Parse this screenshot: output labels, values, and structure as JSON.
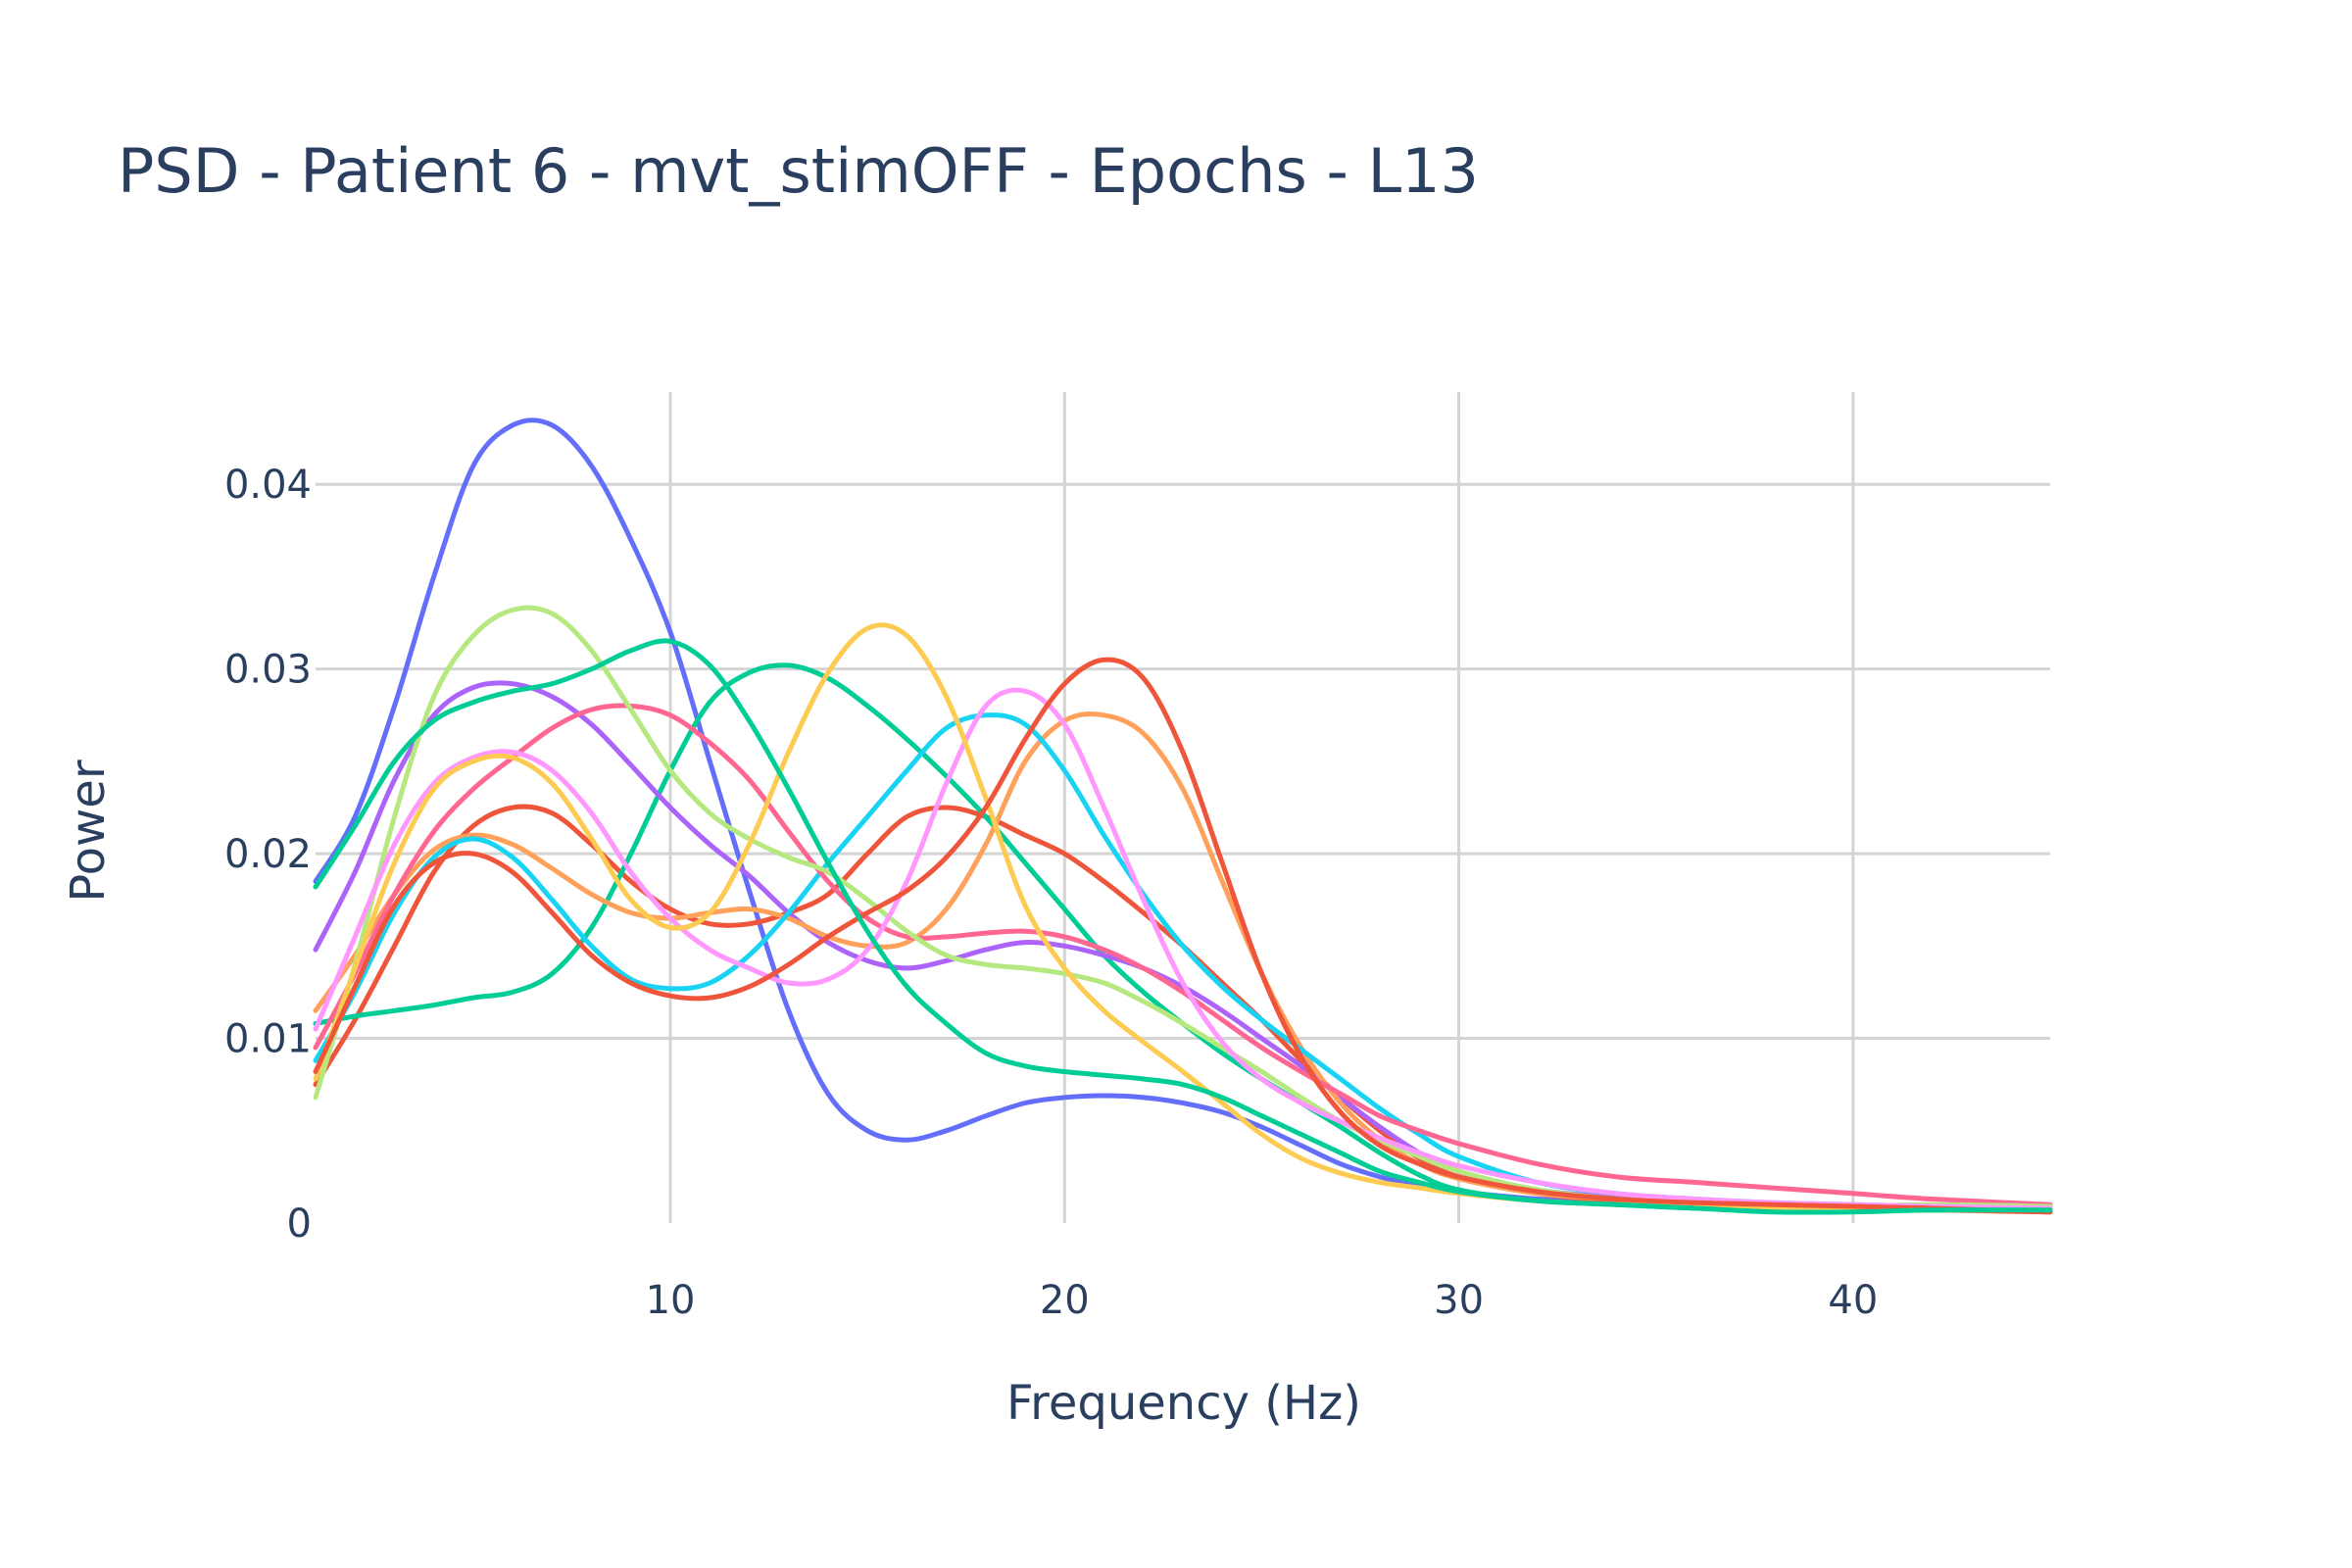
{
  "chart_data": {
    "type": "line",
    "title": "PSD - Patient 6 - mvt_stimOFF - Epochs - L13",
    "xlabel": "Frequency (Hz)",
    "ylabel": "Power",
    "xlim": [
      1,
      45
    ],
    "ylim": [
      0,
      0.045
    ],
    "x_ticks": [
      10,
      20,
      30,
      40
    ],
    "x_tick_labels": [
      "10",
      "20",
      "30",
      "40"
    ],
    "y_ticks": [
      0,
      0.01,
      0.02,
      0.03,
      0.04
    ],
    "y_tick_labels": [
      "0",
      "0.01",
      "0.02",
      "0.03",
      "0.04"
    ],
    "grid": true,
    "legend": "none",
    "x": [
      1,
      2,
      3,
      4,
      5,
      6,
      7,
      8,
      9,
      10,
      11,
      12,
      13,
      14,
      15,
      16,
      17,
      18,
      19,
      20,
      21,
      22,
      23,
      24,
      25,
      26,
      27,
      28,
      29,
      30,
      32,
      34,
      36,
      38,
      40,
      42,
      45
    ],
    "series": [
      {
        "color": "#636efa",
        "values": [
          0.0185,
          0.022,
          0.028,
          0.035,
          0.041,
          0.0432,
          0.0432,
          0.041,
          0.037,
          0.032,
          0.025,
          0.018,
          0.0115,
          0.007,
          0.005,
          0.0045,
          0.005,
          0.0058,
          0.0065,
          0.0068,
          0.0069,
          0.0068,
          0.0065,
          0.006,
          0.0052,
          0.0042,
          0.0032,
          0.0025,
          0.002,
          0.0017,
          0.0013,
          0.0011,
          0.001,
          0.001,
          0.0009,
          0.0008,
          0.0007
        ]
      },
      {
        "color": "#ef553b",
        "values": [
          0.0075,
          0.011,
          0.015,
          0.019,
          0.0215,
          0.0225,
          0.0222,
          0.0205,
          0.0185,
          0.017,
          0.0162,
          0.0162,
          0.0168,
          0.0178,
          0.02,
          0.022,
          0.0225,
          0.022,
          0.021,
          0.02,
          0.0185,
          0.0168,
          0.015,
          0.013,
          0.011,
          0.0088,
          0.0068,
          0.005,
          0.0035,
          0.0025,
          0.0016,
          0.0012,
          0.001,
          0.0009,
          0.0008,
          0.0007,
          0.0006
        ]
      },
      {
        "color": "#00cc96",
        "values": [
          0.0108,
          0.0112,
          0.0115,
          0.0118,
          0.0122,
          0.0125,
          0.0135,
          0.016,
          0.02,
          0.0245,
          0.0282,
          0.0298,
          0.0302,
          0.0295,
          0.028,
          0.0262,
          0.0242,
          0.022,
          0.0195,
          0.017,
          0.0145,
          0.0125,
          0.0108,
          0.0092,
          0.0078,
          0.0065,
          0.0052,
          0.0038,
          0.0026,
          0.0018,
          0.0012,
          0.001,
          0.0008,
          0.0007,
          0.0007,
          0.0007,
          0.0007
        ]
      },
      {
        "color": "#ab63fa",
        "values": [
          0.0148,
          0.019,
          0.024,
          0.0275,
          0.029,
          0.0292,
          0.0285,
          0.027,
          0.0248,
          0.0225,
          0.0205,
          0.0188,
          0.0168,
          0.0152,
          0.0142,
          0.0138,
          0.0142,
          0.0148,
          0.0152,
          0.015,
          0.0145,
          0.0138,
          0.0128,
          0.0115,
          0.01,
          0.0085,
          0.0068,
          0.0052,
          0.0038,
          0.0028,
          0.0018,
          0.0014,
          0.0012,
          0.001,
          0.0009,
          0.0008,
          0.0008
        ]
      },
      {
        "color": "#ffa15a",
        "values": [
          0.0115,
          0.0145,
          0.0178,
          0.0202,
          0.021,
          0.0205,
          0.0192,
          0.0178,
          0.0168,
          0.0165,
          0.0168,
          0.017,
          0.0165,
          0.0155,
          0.015,
          0.0152,
          0.017,
          0.0205,
          0.025,
          0.0272,
          0.0275,
          0.0265,
          0.0235,
          0.0185,
          0.0135,
          0.0095,
          0.0065,
          0.0045,
          0.0032,
          0.0024,
          0.0016,
          0.0013,
          0.0011,
          0.001,
          0.0009,
          0.0008,
          0.0007
        ]
      },
      {
        "color": "#19d3f3",
        "values": [
          0.0088,
          0.0125,
          0.0168,
          0.0198,
          0.0208,
          0.0198,
          0.0175,
          0.015,
          0.0132,
          0.0127,
          0.013,
          0.0145,
          0.0168,
          0.0195,
          0.022,
          0.0245,
          0.0268,
          0.0275,
          0.027,
          0.0245,
          0.021,
          0.0178,
          0.015,
          0.0128,
          0.011,
          0.0094,
          0.0078,
          0.0062,
          0.0048,
          0.0036,
          0.0022,
          0.0016,
          0.0013,
          0.0011,
          0.001,
          0.0009,
          0.0008
        ]
      },
      {
        "color": "#ff6692",
        "values": [
          0.0095,
          0.0135,
          0.0178,
          0.0212,
          0.0235,
          0.0252,
          0.0268,
          0.0278,
          0.028,
          0.0275,
          0.026,
          0.024,
          0.0212,
          0.0185,
          0.0165,
          0.0155,
          0.0155,
          0.0157,
          0.0158,
          0.0155,
          0.0148,
          0.0138,
          0.0125,
          0.011,
          0.0095,
          0.0082,
          0.007,
          0.0058,
          0.005,
          0.0043,
          0.0032,
          0.0025,
          0.0022,
          0.0019,
          0.0016,
          0.0013,
          0.001
        ]
      },
      {
        "color": "#b6e880",
        "values": [
          0.0068,
          0.014,
          0.022,
          0.0285,
          0.0318,
          0.0332,
          0.033,
          0.031,
          0.0278,
          0.0245,
          0.0222,
          0.0208,
          0.0198,
          0.019,
          0.0175,
          0.0158,
          0.0145,
          0.014,
          0.0138,
          0.0135,
          0.013,
          0.012,
          0.0108,
          0.0095,
          0.0082,
          0.0068,
          0.0055,
          0.0045,
          0.0036,
          0.0028,
          0.0018,
          0.0013,
          0.001,
          0.0009,
          0.0009,
          0.001,
          0.0009
        ]
      },
      {
        "color": "#ff97ff",
        "values": [
          0.0105,
          0.0155,
          0.0205,
          0.0238,
          0.0252,
          0.0255,
          0.0245,
          0.0222,
          0.019,
          0.0165,
          0.0148,
          0.0138,
          0.013,
          0.0132,
          0.0148,
          0.0185,
          0.0238,
          0.028,
          0.0288,
          0.027,
          0.0225,
          0.0175,
          0.013,
          0.0098,
          0.0078,
          0.0065,
          0.0055,
          0.0046,
          0.0038,
          0.0031,
          0.0022,
          0.0016,
          0.0013,
          0.0011,
          0.001,
          0.0009,
          0.0008
        ]
      },
      {
        "color": "#fecb52",
        "values": [
          0.0078,
          0.0138,
          0.0195,
          0.0235,
          0.025,
          0.0252,
          0.0238,
          0.0208,
          0.0175,
          0.016,
          0.0168,
          0.0205,
          0.0255,
          0.0298,
          0.0322,
          0.0318,
          0.0285,
          0.023,
          0.0172,
          0.0138,
          0.0115,
          0.0098,
          0.0082,
          0.0065,
          0.0048,
          0.0035,
          0.0027,
          0.0022,
          0.0019,
          0.0016,
          0.0012,
          0.001,
          0.0009,
          0.0008,
          0.0008,
          0.0007,
          0.0007
        ]
      },
      {
        "color": "#ef553b",
        "values": [
          0.0082,
          0.0128,
          0.0172,
          0.0195,
          0.02,
          0.019,
          0.0168,
          0.0145,
          0.013,
          0.0123,
          0.0122,
          0.0128,
          0.014,
          0.0155,
          0.0168,
          0.018,
          0.0198,
          0.0225,
          0.0262,
          0.0292,
          0.0305,
          0.0295,
          0.0255,
          0.0195,
          0.0135,
          0.009,
          0.006,
          0.0042,
          0.0032,
          0.0025,
          0.0017,
          0.0013,
          0.0011,
          0.001,
          0.0009,
          0.0008,
          0.0006
        ]
      },
      {
        "color": "#00cc96",
        "values": [
          0.0182,
          0.0215,
          0.025,
          0.0272,
          0.0282,
          0.0288,
          0.0292,
          0.03,
          0.031,
          0.0315,
          0.0302,
          0.0272,
          0.0235,
          0.0195,
          0.0158,
          0.0128,
          0.0108,
          0.0092,
          0.0085,
          0.0082,
          0.008,
          0.0078,
          0.0075,
          0.0068,
          0.0058,
          0.0048,
          0.0038,
          0.0028,
          0.0022,
          0.0017,
          0.0012,
          0.001,
          0.0008,
          0.0006,
          0.0006,
          0.0007,
          0.0007
        ]
      }
    ]
  }
}
